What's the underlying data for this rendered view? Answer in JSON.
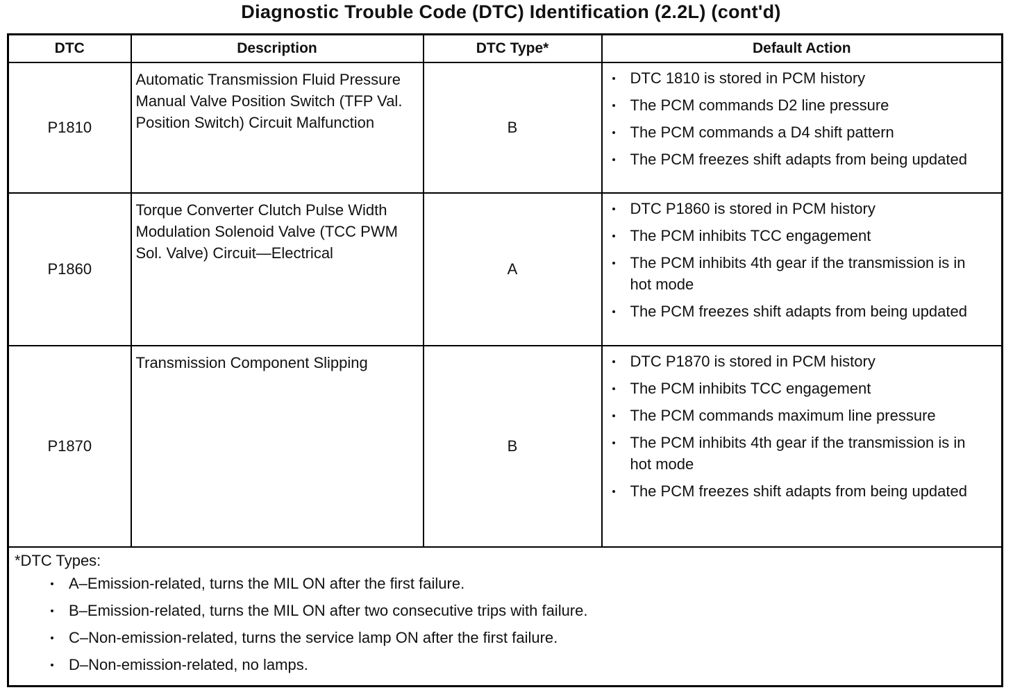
{
  "title": "Diagnostic Trouble Code (DTC) Identification (2.2L) (cont'd)",
  "table": {
    "header": [
      "DTC",
      "Description",
      "DTC Type*",
      "Default Action"
    ],
    "rows": [
      {
        "dtc": "P1810",
        "description": "Automatic Transmission Fluid Pressure Manual Valve Position Switch (TFP Val. Position Switch) Circuit Malfunction",
        "type": "B",
        "actions": [
          "DTC 1810 is stored in PCM history",
          "The PCM commands D2 line pressure",
          "The PCM commands a D4 shift pattern",
          "The PCM freezes shift adapts from being updated"
        ]
      },
      {
        "dtc": "P1860",
        "description": "Torque Converter Clutch Pulse Width Modulation Solenoid Valve (TCC PWM Sol. Valve) Circuit—Electrical",
        "type": "A",
        "actions": [
          "DTC P1860 is stored in PCM history",
          "The PCM inhibits TCC engagement",
          "The PCM inhibits 4th gear if the transmission is in hot mode",
          "The PCM freezes shift adapts from being updated"
        ]
      },
      {
        "dtc": "P1870",
        "description": "Transmission Component Slipping",
        "type": "B",
        "actions": [
          "DTC P1870 is stored in PCM history",
          "The PCM inhibits TCC engagement",
          "The PCM commands maximum line pressure",
          "The PCM inhibits 4th gear if the transmission is in hot mode",
          "The PCM freezes shift adapts from being updated"
        ]
      }
    ]
  },
  "footnote": {
    "title": "*DTC Types:",
    "items": [
      "A–Emission-related, turns the MIL ON after the first failure.",
      "B–Emission-related, turns the MIL ON after two consecutive trips with failure.",
      "C–Non-emission-related, turns the service lamp ON after the first failure.",
      "D–Non-emission-related, no lamps."
    ]
  }
}
